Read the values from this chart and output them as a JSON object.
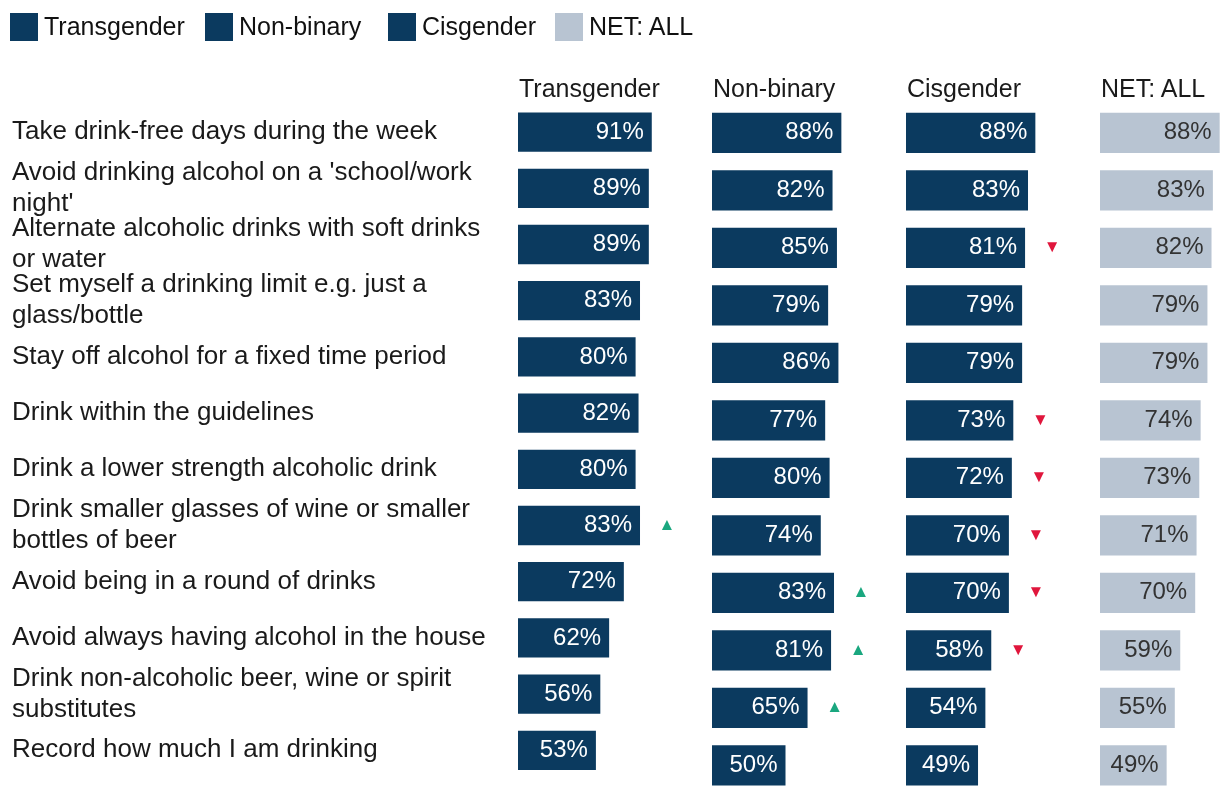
{
  "chart_data": [
    {
      "type": "bar",
      "orientation": "horizontal",
      "title": "Transgender",
      "legend": "top left",
      "tick_labels": "y",
      "categories": [
        "Take drink-free days during the week",
        "Avoid drinking alcohol on a 'school/work night'",
        "Alternate alcoholic drinks with soft drinks or water",
        "Set myself a drinking limit e.g. just a glass/bottle",
        "Stay off alcohol for a fixed time period",
        "Drink within the guidelines",
        "Drink a lower strength alcoholic drink",
        "Drink smaller glasses of wine or smaller bottles of beer",
        "Avoid being in a round of drinks",
        "Avoid always having alcohol in the house",
        "Drink non-alcoholic beer, wine or spirit substitutes",
        "Record how much I am drinking"
      ],
      "series": [
        {
          "name": "Transgender",
          "color": "#0b3a5f",
          "values": [
            91,
            89,
            89,
            83,
            80,
            82,
            80,
            83,
            72,
            62,
            56,
            53
          ],
          "value_labels": [
            "91%",
            "89%",
            "89%",
            "83%",
            "80%",
            "82%",
            "80%",
            "83%",
            "72%",
            "62%",
            "56%",
            "53%"
          ]
        }
      ],
      "annotations": [
        {
          "text": "▲",
          "x": 83,
          "y": "Drink smaller glasses of wine or smaller bottles of beer"
        }
      ]
    },
    {
      "type": "bar",
      "orientation": "horizontal",
      "title": "Non-binary",
      "legend": "top left",
      "tick_labels": false,
      "categories": [
        "Take drink-free days during the week",
        "Avoid drinking alcohol on a 'school/work night'",
        "Alternate alcoholic drinks with soft drinks or water",
        "Set myself a drinking limit e.g. just a glass/bottle",
        "Stay off alcohol for a fixed time period",
        "Drink within the guidelines",
        "Drink a lower strength alcoholic drink",
        "Drink smaller glasses of wine or smaller bottles of beer",
        "Avoid being in a round of drinks",
        "Avoid always having alcohol in the house",
        "Drink non-alcoholic beer, wine or spirit substitutes",
        "Record how much I am drinking"
      ],
      "series": [
        {
          "name": "Non-binary",
          "color": "#0b3a5f",
          "values": [
            88,
            82,
            85,
            79,
            86,
            77,
            80,
            74,
            83,
            81,
            65,
            50
          ],
          "value_labels": [
            "88%",
            "82%",
            "85%",
            "79%",
            "86%",
            "77%",
            "80%",
            "74%",
            "83%",
            "81%",
            "65%",
            "50%"
          ]
        }
      ],
      "annotations": [
        {
          "text": "▲",
          "x": 83,
          "y": "Avoid being in a round of drinks"
        },
        {
          "text": "▲",
          "x": 81,
          "y": "Avoid always having alcohol in the house"
        },
        {
          "text": "▲",
          "x": 65,
          "y": "Drink non-alcoholic beer, wine or spirit substitutes"
        }
      ]
    },
    {
      "type": "bar",
      "orientation": "horizontal",
      "title": "Cisgender",
      "legend": "top left",
      "tick_labels": false,
      "categories": [
        "Take drink-free days during the week",
        "Avoid drinking alcohol on a 'school/work night'",
        "Alternate alcoholic drinks with soft drinks or water",
        "Set myself a drinking limit e.g. just a glass/bottle",
        "Stay off alcohol for a fixed time period",
        "Drink within the guidelines",
        "Drink a lower strength alcoholic drink",
        "Drink smaller glasses of wine or smaller bottles of beer",
        "Avoid being in a round of drinks",
        "Avoid always having alcohol in the house",
        "Drink non-alcoholic beer, wine or spirit substitutes",
        "Record how much I am drinking"
      ],
      "series": [
        {
          "name": "Cisgender",
          "color": "#0b3a5f",
          "values": [
            88,
            83,
            81,
            79,
            79,
            73,
            72,
            70,
            70,
            58,
            54,
            49
          ],
          "value_labels": [
            "88%",
            "83%",
            "81%",
            "79%",
            "79%",
            "73%",
            "72%",
            "70%",
            "70%",
            "58%",
            "54%",
            "49%"
          ]
        }
      ],
      "annotations": [
        {
          "text": "▼",
          "x": 81,
          "y": "Alternate alcoholic drinks with soft drinks or water"
        },
        {
          "text": "▼",
          "x": 73,
          "y": "Drink within the guidelines"
        },
        {
          "text": "▼",
          "x": 72,
          "y": "Drink a lower strength alcoholic drink"
        },
        {
          "text": "▼",
          "x": 70,
          "y": "Drink smaller glasses of wine or smaller bottles of beer"
        },
        {
          "text": "▼",
          "x": 70,
          "y": "Avoid being in a round of drinks"
        },
        {
          "text": "▼",
          "x": 58,
          "y": "Avoid always having alcohol in the house"
        }
      ]
    },
    {
      "type": "bar",
      "orientation": "horizontal",
      "title": "NET: ALL",
      "legend": "top left",
      "tick_labels": false,
      "categories": [
        "Take drink-free days during the week",
        "Avoid drinking alcohol on a 'school/work night'",
        "Alternate alcoholic drinks with soft drinks or water",
        "Set myself a drinking limit e.g. just a glass/bottle",
        "Stay off alcohol for a fixed time period",
        "Drink within the guidelines",
        "Drink a lower strength alcoholic drink",
        "Drink smaller glasses of wine or smaller bottles of beer",
        "Avoid being in a round of drinks",
        "Avoid always having alcohol in the house",
        "Drink non-alcoholic beer, wine or spirit substitutes",
        "Record how much I am drinking"
      ],
      "series": [
        {
          "name": "NET: ALL",
          "color": "#b8c4d2",
          "values": [
            88,
            83,
            82,
            79,
            79,
            74,
            73,
            71,
            70,
            59,
            55,
            49
          ],
          "value_labels": [
            "88%",
            "83%",
            "82%",
            "79%",
            "79%",
            "74%",
            "73%",
            "71%",
            "70%",
            "59%",
            "55%",
            "49%"
          ]
        }
      ]
    }
  ]
}
